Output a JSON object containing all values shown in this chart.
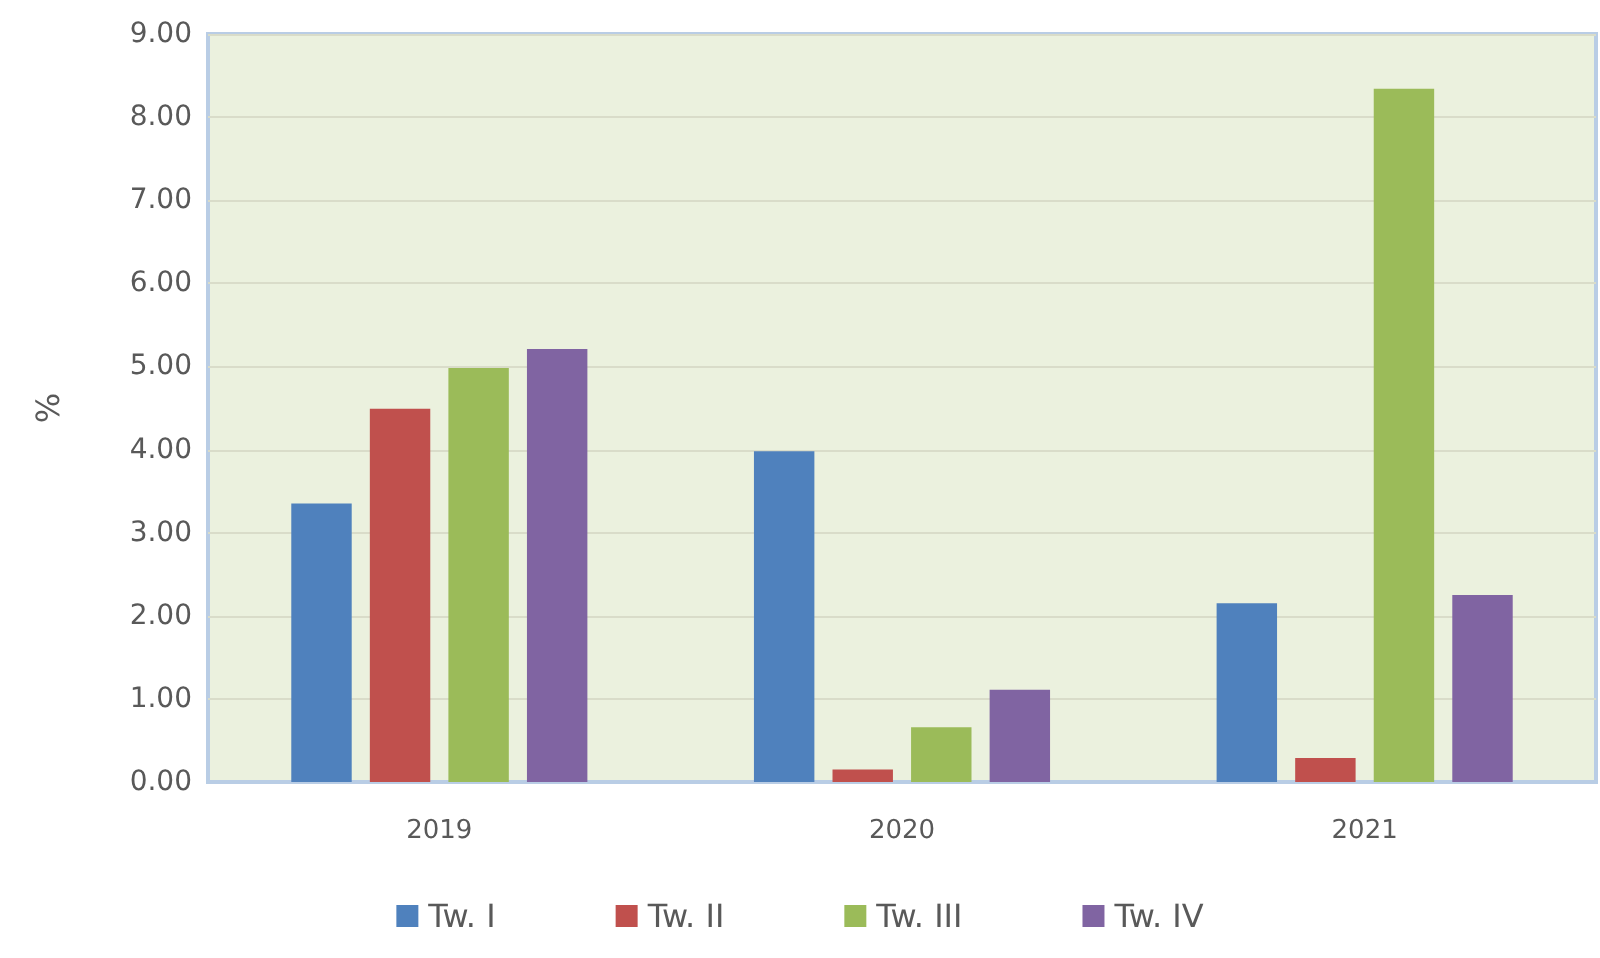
{
  "chart_data": {
    "type": "bar",
    "ylabel": "%",
    "categories": [
      "2019",
      "2020",
      "2021"
    ],
    "series": [
      {
        "name": "Tw. I",
        "color": "#4f81bd",
        "values": [
          3.35,
          3.98,
          2.15
        ]
      },
      {
        "name": "Tw. II",
        "color": "#c0504d",
        "values": [
          4.49,
          0.15,
          0.29
        ]
      },
      {
        "name": "Tw. III",
        "color": "#9bbb59",
        "values": [
          4.98,
          0.66,
          8.34
        ]
      },
      {
        "name": "Tw. IV",
        "color": "#8064a2",
        "values": [
          5.21,
          1.11,
          2.25
        ]
      }
    ],
    "ylim": [
      0,
      9
    ],
    "yticks": [
      {
        "value": 0,
        "label": "0.00"
      },
      {
        "value": 1,
        "label": "1.00"
      },
      {
        "value": 2,
        "label": "2.00"
      },
      {
        "value": 3,
        "label": "3.00"
      },
      {
        "value": 4,
        "label": "4.00"
      },
      {
        "value": 5,
        "label": "5.00"
      },
      {
        "value": 6,
        "label": "6.00"
      },
      {
        "value": 7,
        "label": "7.00"
      },
      {
        "value": 8,
        "label": "8.00"
      },
      {
        "value": 9,
        "label": "9.00"
      }
    ],
    "grid": "y",
    "legend": "bottom"
  }
}
